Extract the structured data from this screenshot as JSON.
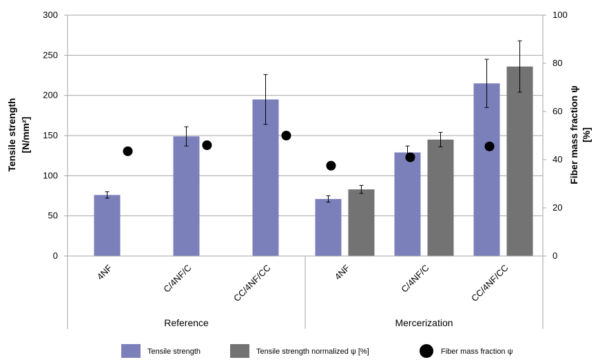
{
  "chart_data": {
    "type": "bar",
    "groups": [
      "Reference",
      "Mercerization"
    ],
    "categories": [
      "4NF",
      "C/4NF/C",
      "CC/4NF/CC",
      "4NF",
      "C/4NF/C",
      "CC/4NF/CC"
    ],
    "series": [
      {
        "name": "Tensile strength",
        "axis": "left",
        "style": "bar",
        "color": "#7b7fba",
        "values": [
          76,
          149,
          195,
          71,
          129,
          215
        ],
        "errors": [
          4,
          12,
          31,
          4,
          8,
          30
        ]
      },
      {
        "name": "Tensile strength normalized ψ [%]",
        "axis": "left",
        "style": "bar",
        "color": "#737373",
        "values": [
          null,
          null,
          null,
          83,
          145,
          236
        ],
        "errors": [
          null,
          null,
          null,
          5,
          9,
          32
        ]
      },
      {
        "name": "Fiber mass fraction ψ",
        "axis": "right",
        "style": "marker",
        "color": "#000000",
        "values": [
          43.5,
          46,
          50,
          37.5,
          41,
          45.5
        ]
      }
    ],
    "ylabel": [
      "Tensile strength",
      "[N/mm²]"
    ],
    "y2label": [
      "Fiber mass fraction ψ",
      "[%]"
    ],
    "ylim": [
      0,
      300
    ],
    "y2lim": [
      0,
      100
    ],
    "yticks": [
      "0",
      "50",
      "100",
      "150",
      "200",
      "250",
      "300"
    ],
    "y2ticks": [
      "0",
      "20",
      "40",
      "60",
      "80",
      "100"
    ],
    "grid": true,
    "legend_position": "bottom"
  }
}
